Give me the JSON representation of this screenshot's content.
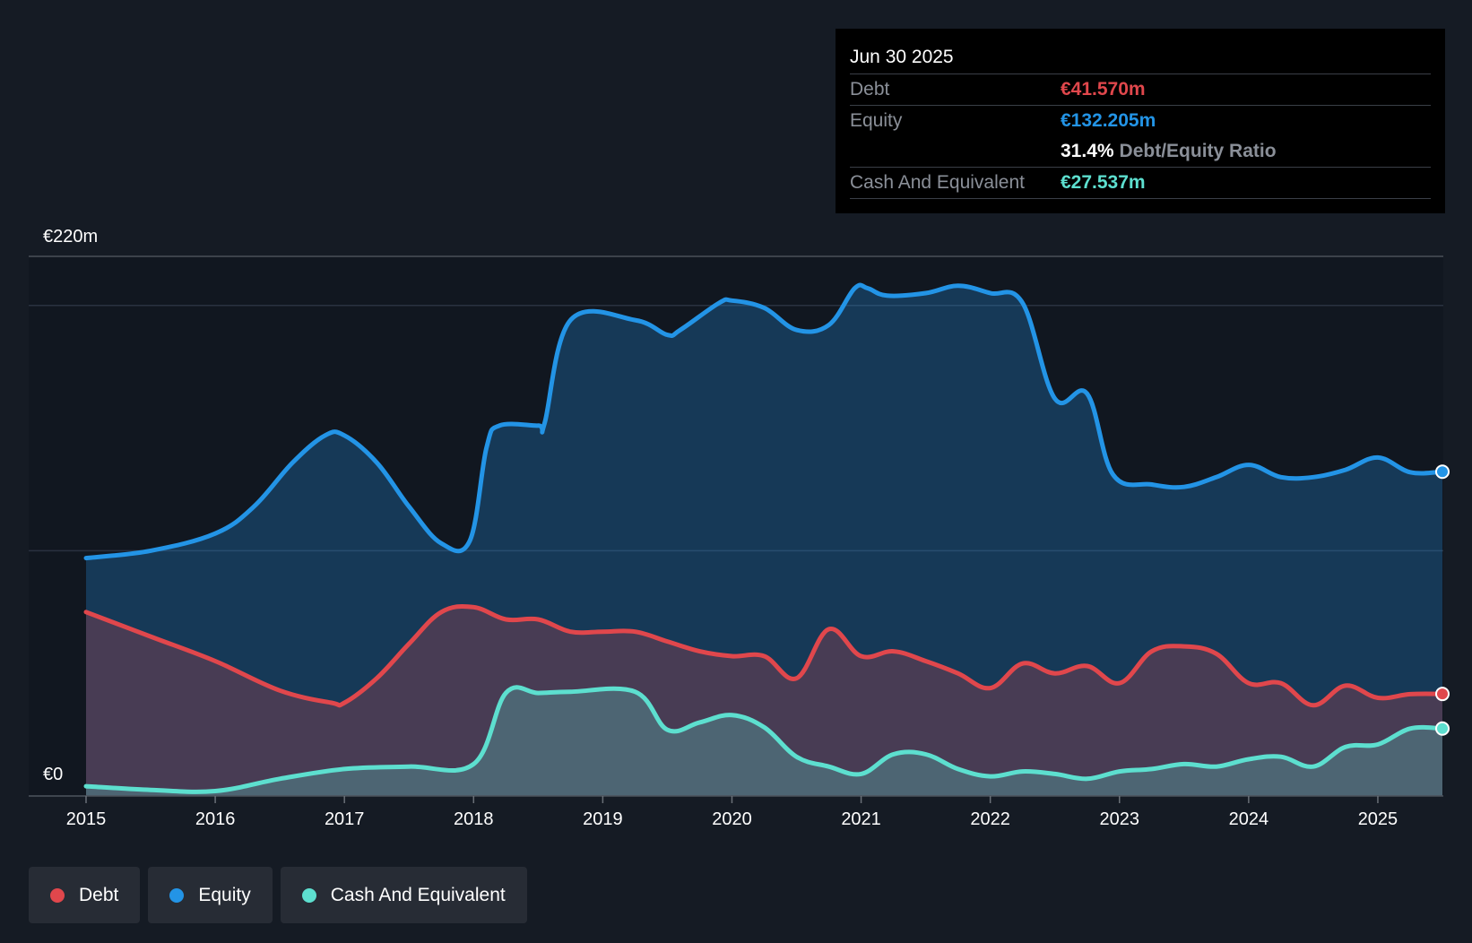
{
  "chart_data": {
    "type": "area",
    "currency_labels": {
      "top": "€220m",
      "bottom": "€0"
    },
    "ylim": [
      0,
      220
    ],
    "x_ticks": [
      "2015",
      "2016",
      "2017",
      "2018",
      "2019",
      "2020",
      "2021",
      "2022",
      "2023",
      "2024",
      "2025"
    ],
    "x_range": [
      2015.0,
      2025.5
    ],
    "series": [
      {
        "name": "Equity",
        "color": "#2394e6",
        "points": [
          [
            2015.0,
            97
          ],
          [
            2015.5,
            100
          ],
          [
            2016.0,
            107
          ],
          [
            2016.3,
            118
          ],
          [
            2016.6,
            136
          ],
          [
            2016.85,
            147
          ],
          [
            2017.0,
            147
          ],
          [
            2017.25,
            136
          ],
          [
            2017.5,
            118
          ],
          [
            2017.75,
            103
          ],
          [
            2017.97,
            104
          ],
          [
            2018.1,
            142
          ],
          [
            2018.2,
            151
          ],
          [
            2018.5,
            151
          ],
          [
            2018.55,
            152
          ],
          [
            2018.75,
            194
          ],
          [
            2019.25,
            194
          ],
          [
            2019.5,
            188
          ],
          [
            2019.6,
            190
          ],
          [
            2019.9,
            201
          ],
          [
            2020.0,
            202
          ],
          [
            2020.25,
            199
          ],
          [
            2020.5,
            190
          ],
          [
            2020.75,
            192
          ],
          [
            2020.95,
            207
          ],
          [
            2021.05,
            207
          ],
          [
            2021.2,
            204
          ],
          [
            2021.5,
            205
          ],
          [
            2021.75,
            208
          ],
          [
            2022.0,
            205
          ],
          [
            2022.25,
            201
          ],
          [
            2022.5,
            162
          ],
          [
            2022.75,
            164
          ],
          [
            2022.95,
            131
          ],
          [
            2023.25,
            127
          ],
          [
            2023.5,
            126
          ],
          [
            2023.75,
            130
          ],
          [
            2024.0,
            135
          ],
          [
            2024.25,
            130
          ],
          [
            2024.5,
            130
          ],
          [
            2024.75,
            133
          ],
          [
            2025.0,
            138
          ],
          [
            2025.25,
            132
          ],
          [
            2025.5,
            132.2
          ]
        ]
      },
      {
        "name": "Debt",
        "color": "#e0474c",
        "points": [
          [
            2015.0,
            75
          ],
          [
            2015.5,
            65
          ],
          [
            2016.0,
            55
          ],
          [
            2016.5,
            43
          ],
          [
            2016.9,
            38
          ],
          [
            2017.0,
            38
          ],
          [
            2017.25,
            48
          ],
          [
            2017.5,
            62
          ],
          [
            2017.75,
            75
          ],
          [
            2018.0,
            77
          ],
          [
            2018.25,
            72
          ],
          [
            2018.5,
            72
          ],
          [
            2018.75,
            67
          ],
          [
            2019.0,
            67
          ],
          [
            2019.25,
            67
          ],
          [
            2019.5,
            63
          ],
          [
            2019.75,
            59
          ],
          [
            2020.0,
            57
          ],
          [
            2020.25,
            57
          ],
          [
            2020.5,
            48
          ],
          [
            2020.75,
            68
          ],
          [
            2021.0,
            57
          ],
          [
            2021.25,
            59
          ],
          [
            2021.5,
            55
          ],
          [
            2021.75,
            50
          ],
          [
            2022.0,
            44
          ],
          [
            2022.25,
            54
          ],
          [
            2022.5,
            50
          ],
          [
            2022.75,
            53
          ],
          [
            2023.0,
            46
          ],
          [
            2023.25,
            59
          ],
          [
            2023.5,
            61
          ],
          [
            2023.75,
            58
          ],
          [
            2024.0,
            46
          ],
          [
            2024.25,
            46
          ],
          [
            2024.5,
            37
          ],
          [
            2024.75,
            45
          ],
          [
            2025.0,
            40
          ],
          [
            2025.25,
            41.5
          ],
          [
            2025.5,
            41.6
          ]
        ]
      },
      {
        "name": "Cash And Equivalent",
        "color": "#5ddfcf",
        "points": [
          [
            2015.0,
            4
          ],
          [
            2015.5,
            2.5
          ],
          [
            2016.0,
            2
          ],
          [
            2016.5,
            7
          ],
          [
            2017.0,
            11
          ],
          [
            2017.5,
            12
          ],
          [
            2018.0,
            13
          ],
          [
            2018.25,
            42
          ],
          [
            2018.5,
            42
          ],
          [
            2018.75,
            42.5
          ],
          [
            2019.25,
            42.5
          ],
          [
            2019.5,
            27
          ],
          [
            2019.75,
            30
          ],
          [
            2020.0,
            33
          ],
          [
            2020.25,
            28
          ],
          [
            2020.5,
            16
          ],
          [
            2020.75,
            12
          ],
          [
            2021.0,
            9
          ],
          [
            2021.25,
            17
          ],
          [
            2021.5,
            17
          ],
          [
            2021.75,
            11
          ],
          [
            2022.0,
            8
          ],
          [
            2022.25,
            10
          ],
          [
            2022.5,
            9
          ],
          [
            2022.75,
            7
          ],
          [
            2023.0,
            10
          ],
          [
            2023.25,
            11
          ],
          [
            2023.5,
            13
          ],
          [
            2023.75,
            12
          ],
          [
            2024.0,
            15
          ],
          [
            2024.25,
            16
          ],
          [
            2024.5,
            12
          ],
          [
            2024.75,
            20
          ],
          [
            2025.0,
            21
          ],
          [
            2025.25,
            27.5
          ],
          [
            2025.5,
            27.5
          ]
        ]
      }
    ]
  },
  "tooltip": {
    "date": "Jun 30 2025",
    "debt_label": "Debt",
    "debt_value": "€41.570m",
    "equity_label": "Equity",
    "equity_value": "€132.205m",
    "ratio_value": "31.4%",
    "ratio_label": "Debt/Equity Ratio",
    "cash_label": "Cash And Equivalent",
    "cash_value": "€27.537m"
  },
  "legend": [
    {
      "label": "Debt",
      "color": "#e0474c"
    },
    {
      "label": "Equity",
      "color": "#2394e6"
    },
    {
      "label": "Cash And Equivalent",
      "color": "#5ddfcf"
    }
  ],
  "colors": {
    "debt": "#e0474c",
    "equity": "#2394e6",
    "cash": "#5ddfcf"
  }
}
